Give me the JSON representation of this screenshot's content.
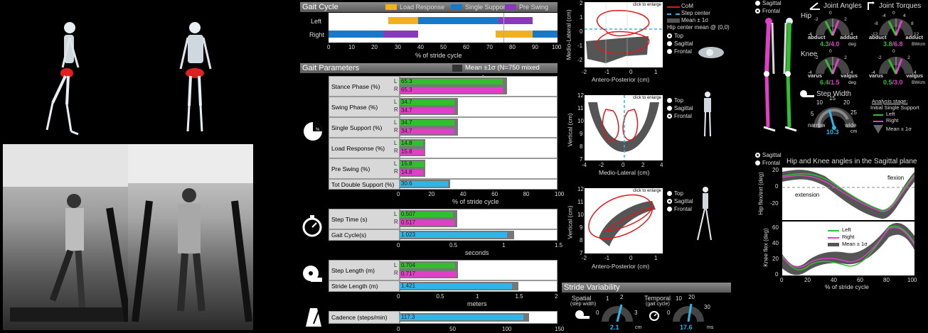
{
  "gait_cycle": {
    "title": "Gait Cycle",
    "legend": [
      "Load Response",
      "Single Support",
      "Pre Swing"
    ],
    "rows": [
      "Left",
      "Right"
    ],
    "ticks": [
      "0",
      "10",
      "20",
      "30",
      "40",
      "50",
      "60",
      "70",
      "80",
      "90",
      "100"
    ],
    "xlabel": "% of stride cycle"
  },
  "gait_params": {
    "title": "Gait Parameters",
    "mean_label": "Mean ±1σ (N=750 mixed group)",
    "rows": [
      {
        "label": "Stance Phase (%)",
        "L": "65.3",
        "R": "65.3",
        "lv": 65.3,
        "rv": 65.3,
        "mean": 68
      },
      {
        "label": "Swing Phase (%)",
        "L": "34.7",
        "R": "34.7",
        "lv": 34.7,
        "rv": 34.7,
        "mean": 37
      },
      {
        "label": "Single Support (%)",
        "L": "34.7",
        "R": "34.7",
        "lv": 34.7,
        "rv": 34.7,
        "mean": 37
      },
      {
        "label": "Load Response (%)",
        "L": "14.8",
        "R": "15.8",
        "lv": 14.8,
        "rv": 15.8,
        "mean": 16
      },
      {
        "label": "Pre Swing (%)",
        "L": "15.8",
        "R": "14.8",
        "lv": 15.8,
        "rv": 14.8,
        "mean": 16
      }
    ],
    "double_support": {
      "label": "Tot Double Support (%)",
      "value": "30.6",
      "v": 30.6,
      "mean": 32
    },
    "ticks": [
      "0",
      "20",
      "40",
      "60",
      "80",
      "100"
    ],
    "xlabel": "% of stride cycle",
    "pie_label": "%"
  },
  "time": {
    "step_label": "Step Time (s)",
    "L": "0.507",
    "R": "0.517",
    "lv": 0.507,
    "rv": 0.517,
    "mean": 0.55,
    "gait_label": "Gait Cycle(s)",
    "gait": "1.023",
    "gv": 1.023,
    "gmean": 1.09,
    "ticks": [
      "0",
      "0.5",
      "1",
      "1.5"
    ],
    "xlabel": "seconds"
  },
  "length": {
    "step_label": "Step Length (m)",
    "L": "0.704",
    "R": "0.717",
    "lv": 0.704,
    "rv": 0.717,
    "mean": 0.74,
    "stride_label": "Stride Length (m)",
    "stride": "1.421",
    "sv": 1.421,
    "smean": 1.5,
    "ticks": [
      "0",
      "0.5",
      "1",
      "1.5",
      "2"
    ],
    "xlabel": "meters"
  },
  "cadence": {
    "label": "Cadence (steps/min)",
    "value": "117.3",
    "v": 117.3,
    "mean": 123,
    "ticks": [
      "0",
      "50",
      "100",
      "150"
    ]
  },
  "com": {
    "enlarge": "click to enlarge",
    "legend": [
      "CoM",
      "Step center",
      "Mean ± 1σ",
      "Hip center mean @ (0,0)"
    ],
    "p1": {
      "ylabel": "Medio-Lateral (cm)",
      "xlabel": "Antero-Posterior (cm)",
      "yt": [
        "2",
        "1",
        "0",
        "-1",
        "-2"
      ],
      "xt": [
        "-2",
        "-1",
        "0",
        "1"
      ]
    },
    "p2": {
      "ylabel": "Vertical (cm)",
      "xlabel": "Medio-Lateral (cm)",
      "yt": [
        "12",
        "11",
        "10",
        "9",
        "8",
        "7"
      ],
      "xt": [
        "-4",
        "-2",
        "0",
        "2",
        "4"
      ]
    },
    "p3": {
      "ylabel": "Vertical (cm)",
      "xlabel": "Antero-Posterior (cm)",
      "yt": [
        "12",
        "11",
        "10",
        "9",
        "8",
        "7"
      ],
      "xt": [
        "-2",
        "-1",
        "0",
        "1"
      ]
    },
    "views": [
      "Top",
      "Sagittal",
      "Frontal"
    ]
  },
  "variability": {
    "title": "Stride Variability",
    "spatial": "Spatial",
    "spatial_sub": "(step width)",
    "spatial_val": "2.1",
    "spatial_unit": "cm",
    "temporal": "Temporal",
    "temporal_sub": "(gait cycle)",
    "temporal_val": "17.6",
    "temporal_unit": "ms",
    "sp_ticks": [
      "0",
      "1",
      "2",
      "3"
    ],
    "tp_ticks": [
      "0",
      "10",
      "20",
      "30"
    ]
  },
  "joints": {
    "views": [
      "Sagittal",
      "Frontal"
    ],
    "angles_title": "Joint Angles",
    "torques_title": "Joint Torques",
    "hip": "Hip",
    "knee": "Knee",
    "hip_angle": {
      "left": "4.3",
      "right": "4.0",
      "unit": "deg",
      "l": "abduct",
      "r": "adduct",
      "ticks": [
        "-4",
        "-2",
        "0",
        "2",
        "4"
      ]
    },
    "hip_torque": {
      "left": "3.8",
      "right": "6.8",
      "unit": "BWcm",
      "l": "abduct",
      "r": "adduct",
      "ticks": [
        "-12",
        "-8",
        "-4",
        "0",
        "4",
        "8",
        "12"
      ]
    },
    "knee_angle": {
      "left": "6.4",
      "right": "1.5",
      "unit": "deg",
      "l": "varus",
      "r": "valgus",
      "ticks": [
        "-4",
        "-2",
        "0",
        "2",
        "4"
      ]
    },
    "knee_torque": {
      "left": "0.5",
      "right": "3.0",
      "unit": "BWcm",
      "l": "varus",
      "r": "valgus",
      "ticks": [
        "-4",
        "-2",
        "0",
        "2",
        "4"
      ]
    },
    "sep": "/",
    "step_width_title": "Step Width",
    "step_width": {
      "value": "10.3",
      "unit": "cm",
      "l": "narrow",
      "r": "wide",
      "ticks": [
        "5",
        "10",
        "15",
        "20",
        "25"
      ]
    },
    "analysis_stage": "Analysis stage:",
    "stage": "Initial Single Support",
    "legend": [
      "Left",
      "Right",
      "Mean ± 1σ"
    ]
  },
  "sagittal": {
    "views": [
      "Sagittal",
      "Frontal"
    ],
    "title": "Hip and Knee angles in the Sagittal plane",
    "flexion": "flexion",
    "extension": "extension",
    "hip_ylabel": "Hip flex/ext (deg)",
    "knee_ylabel": "Knee flex (deg)",
    "hip_yt": [
      "20",
      "0",
      "-20"
    ],
    "knee_yt": [
      "60",
      "40",
      "20",
      "0"
    ],
    "xt": [
      "0",
      "20",
      "40",
      "60",
      "80",
      "100"
    ],
    "xlabel": "% of stride cycle",
    "legend": [
      "Left",
      "Right",
      "Mean ± 1σ"
    ]
  },
  "colors": {
    "green": "#2fbf2f",
    "magenta": "#e040c8",
    "cyan": "#2fb6e8",
    "orange": "#f0b020",
    "blue": "#1a78c8",
    "purple": "#8a3ab8",
    "red": "#e01818"
  }
}
